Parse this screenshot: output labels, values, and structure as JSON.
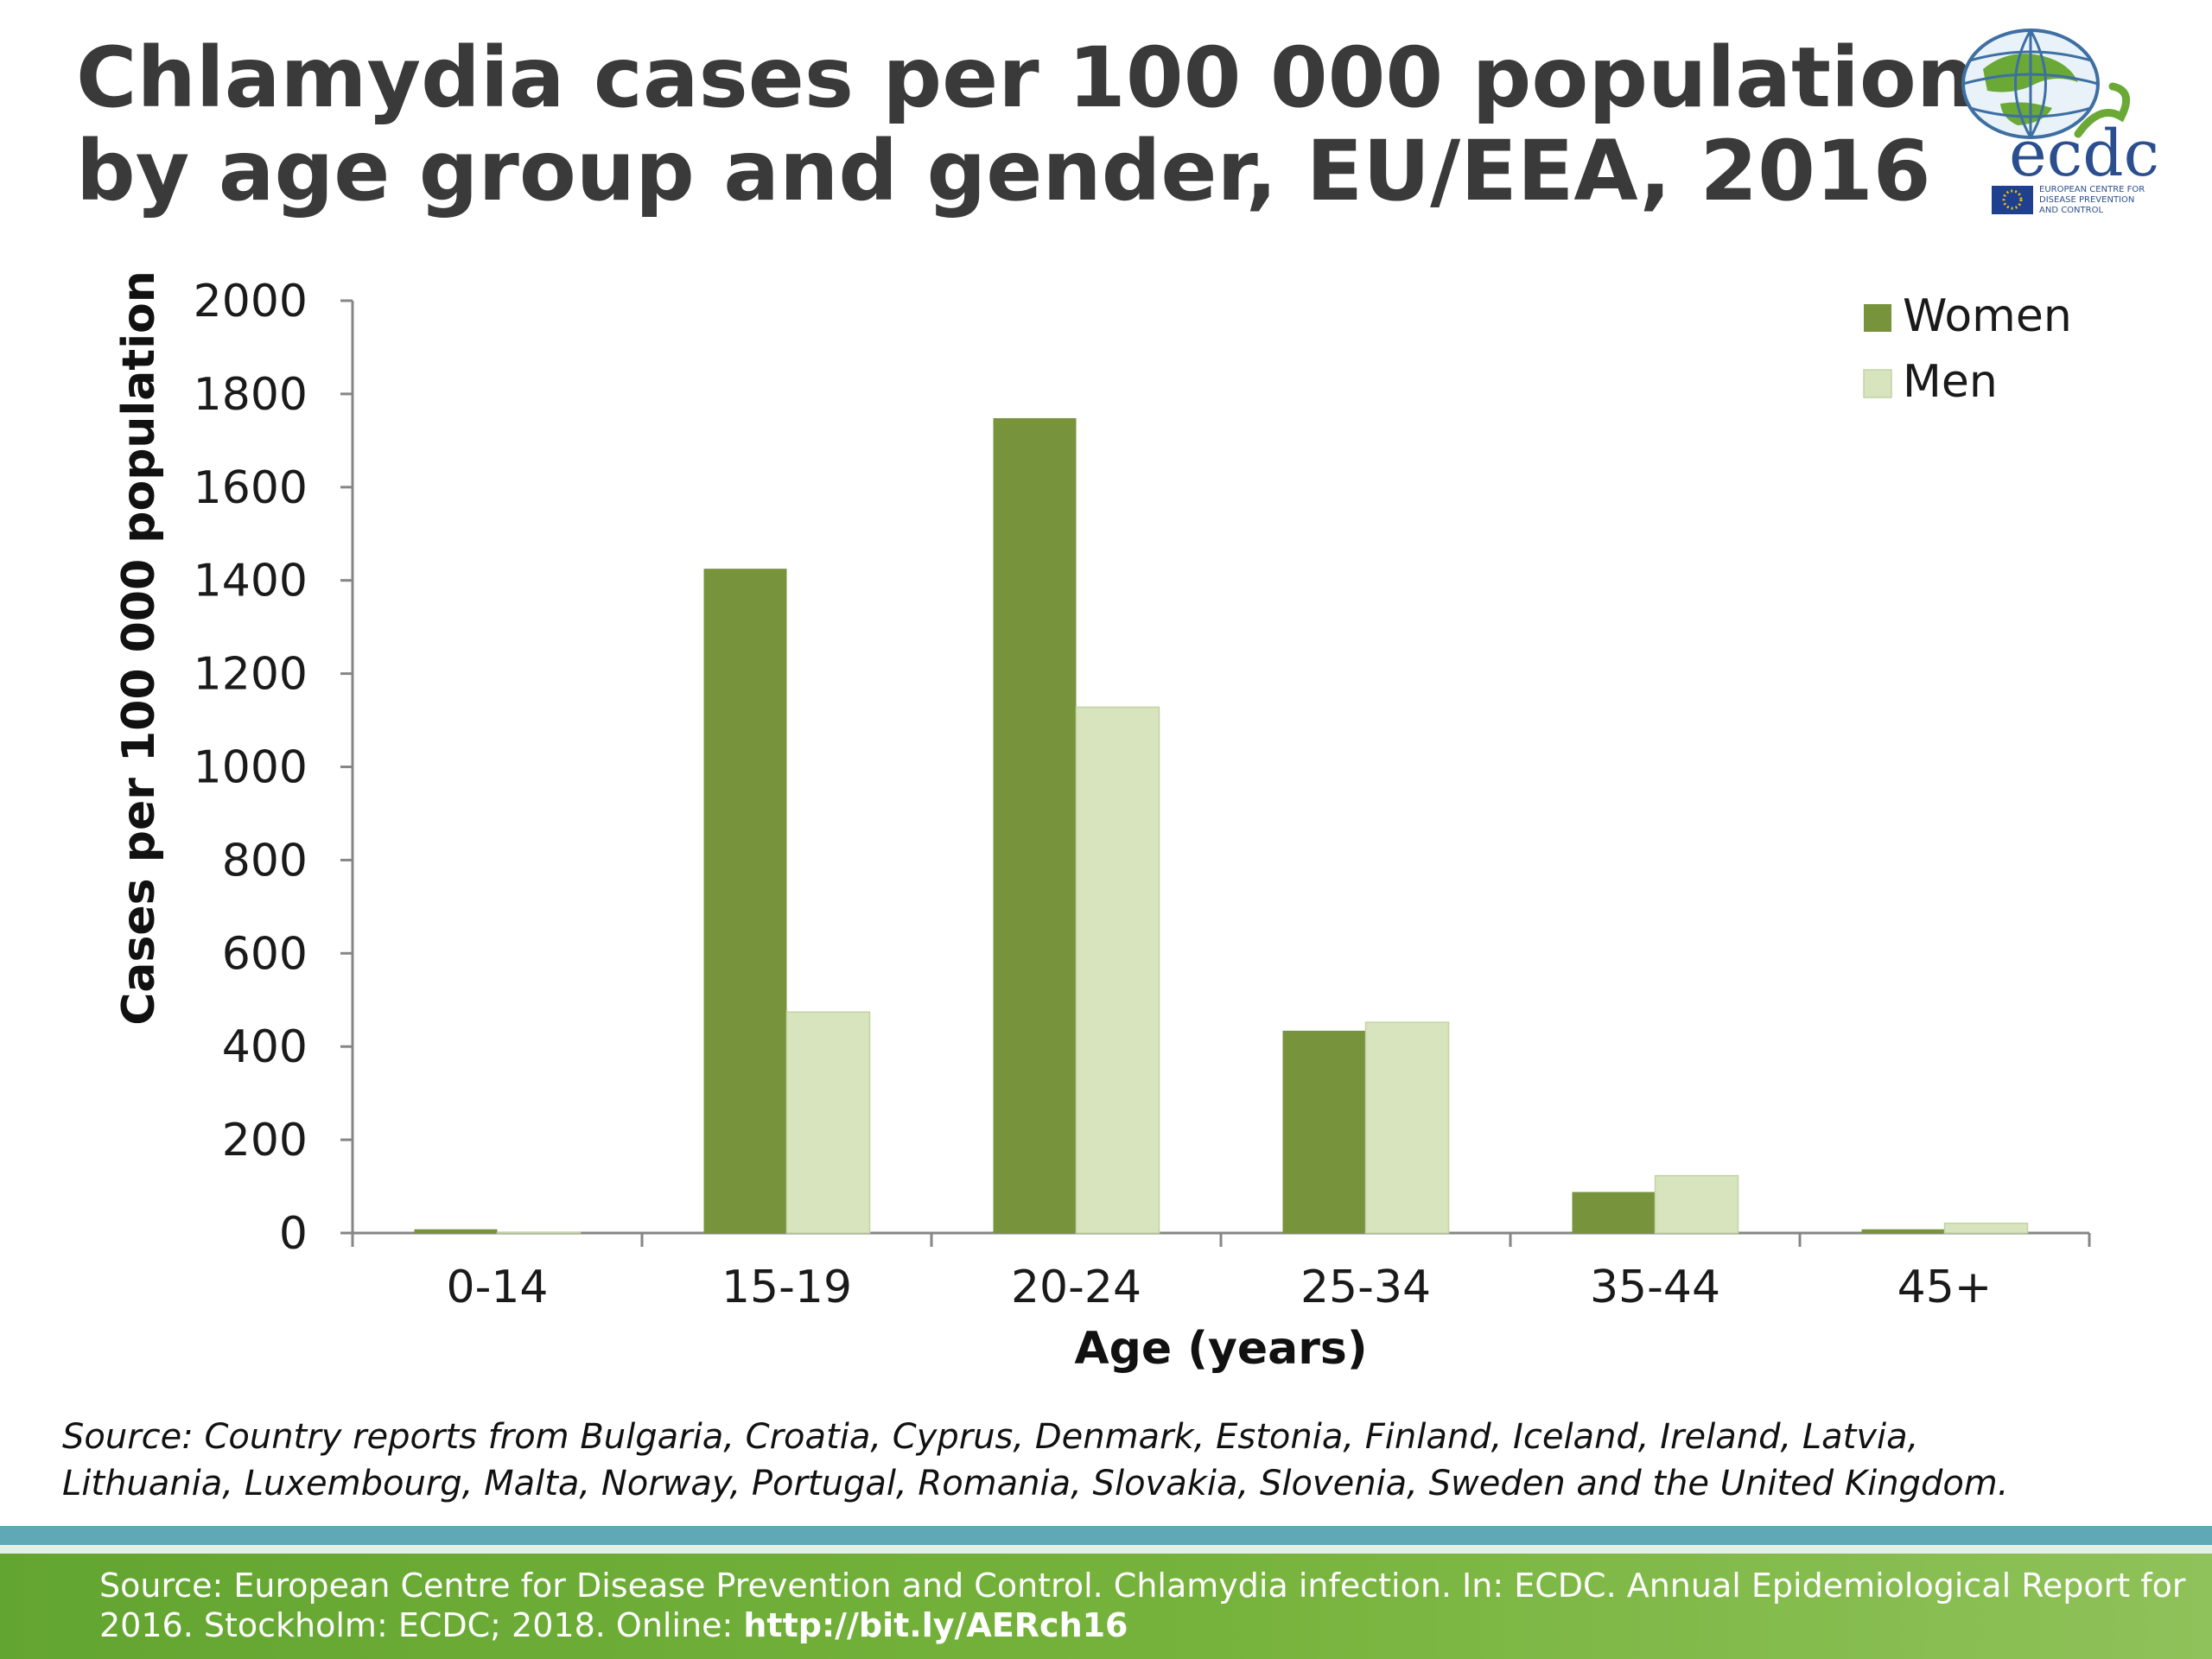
{
  "title_lines": [
    "Chlamydia cases per 100 000 population,",
    "by age group and gender, EU/EEA, 2016"
  ],
  "logo": {
    "name": "ecdc",
    "caption_lines": [
      "EUROPEAN CENTRE FOR",
      "DISEASE PREVENTION",
      "AND CONTROL"
    ]
  },
  "chart_data": {
    "type": "bar",
    "categories": [
      "0-14",
      "15-19",
      "20-24",
      "25-34",
      "35-44",
      "45+"
    ],
    "series": [
      {
        "name": "Women",
        "color": "#77933c",
        "values": [
          8,
          1425,
          1748,
          434,
          88,
          8
        ]
      },
      {
        "name": "Men",
        "color": "#d7e4bd",
        "values": [
          1,
          474,
          1128,
          452,
          123,
          21
        ]
      }
    ],
    "xlabel": "Age (years)",
    "ylabel": "Cases per 100 000 population",
    "ylim": [
      0,
      2000
    ],
    "yticks": [
      "0",
      "200",
      "400",
      "600",
      "800",
      "1000",
      "1200",
      "1400",
      "1600",
      "1800",
      "2000"
    ],
    "grid": false,
    "legend_position": "top-right"
  },
  "source_note_lines": [
    "Source: Country reports from Bulgaria, Croatia, Cyprus, Denmark, Estonia, Finland, Iceland, Ireland, Latvia,",
    "Lithuania, Luxembourg, Malta, Norway, Portugal, Romania, Slovakia, Slovenia, Sweden and the United Kingdom."
  ],
  "footer": {
    "line1": "Source: European Centre for Disease Prevention and Control. Chlamydia infection. In: ECDC. Annual Epidemiological Report for",
    "line2_prefix": "2016. Stockholm: ECDC; 2018. Online: ",
    "link": "http://bit.ly/AERch16"
  },
  "colors": {
    "title": "#3a3a3a",
    "footer_green": "#6aa936",
    "band_teal": "#5fa8b5",
    "logo_green": "#5b9c35",
    "logo_blue": "#2b4f8e"
  }
}
